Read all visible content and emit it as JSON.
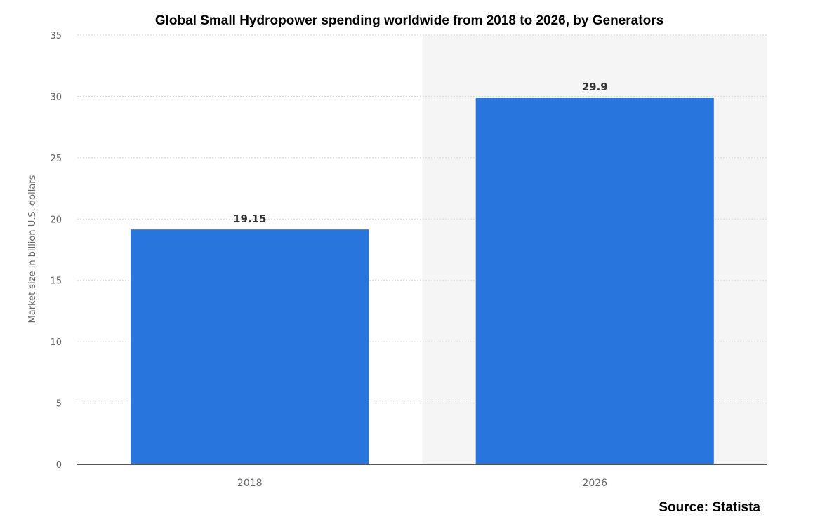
{
  "chart_data": {
    "type": "bar",
    "title": "Global Small Hydropower spending worldwide from 2018 to 2026, by Generators",
    "ylabel": "Market size in billion U.S. dollars",
    "xlabel": "",
    "categories": [
      "2018",
      "2026"
    ],
    "values": [
      19.15,
      29.9
    ],
    "value_labels": [
      "19.15",
      "29.9"
    ],
    "ylim": [
      0,
      35
    ],
    "yticks": [
      0,
      5,
      10,
      15,
      20,
      25,
      30,
      35
    ],
    "grid": true,
    "highlighted_category": "2026",
    "bar_color": "#2876dd",
    "highlight_bg_color": "#f5f5f5"
  },
  "source": "Source: Statista"
}
